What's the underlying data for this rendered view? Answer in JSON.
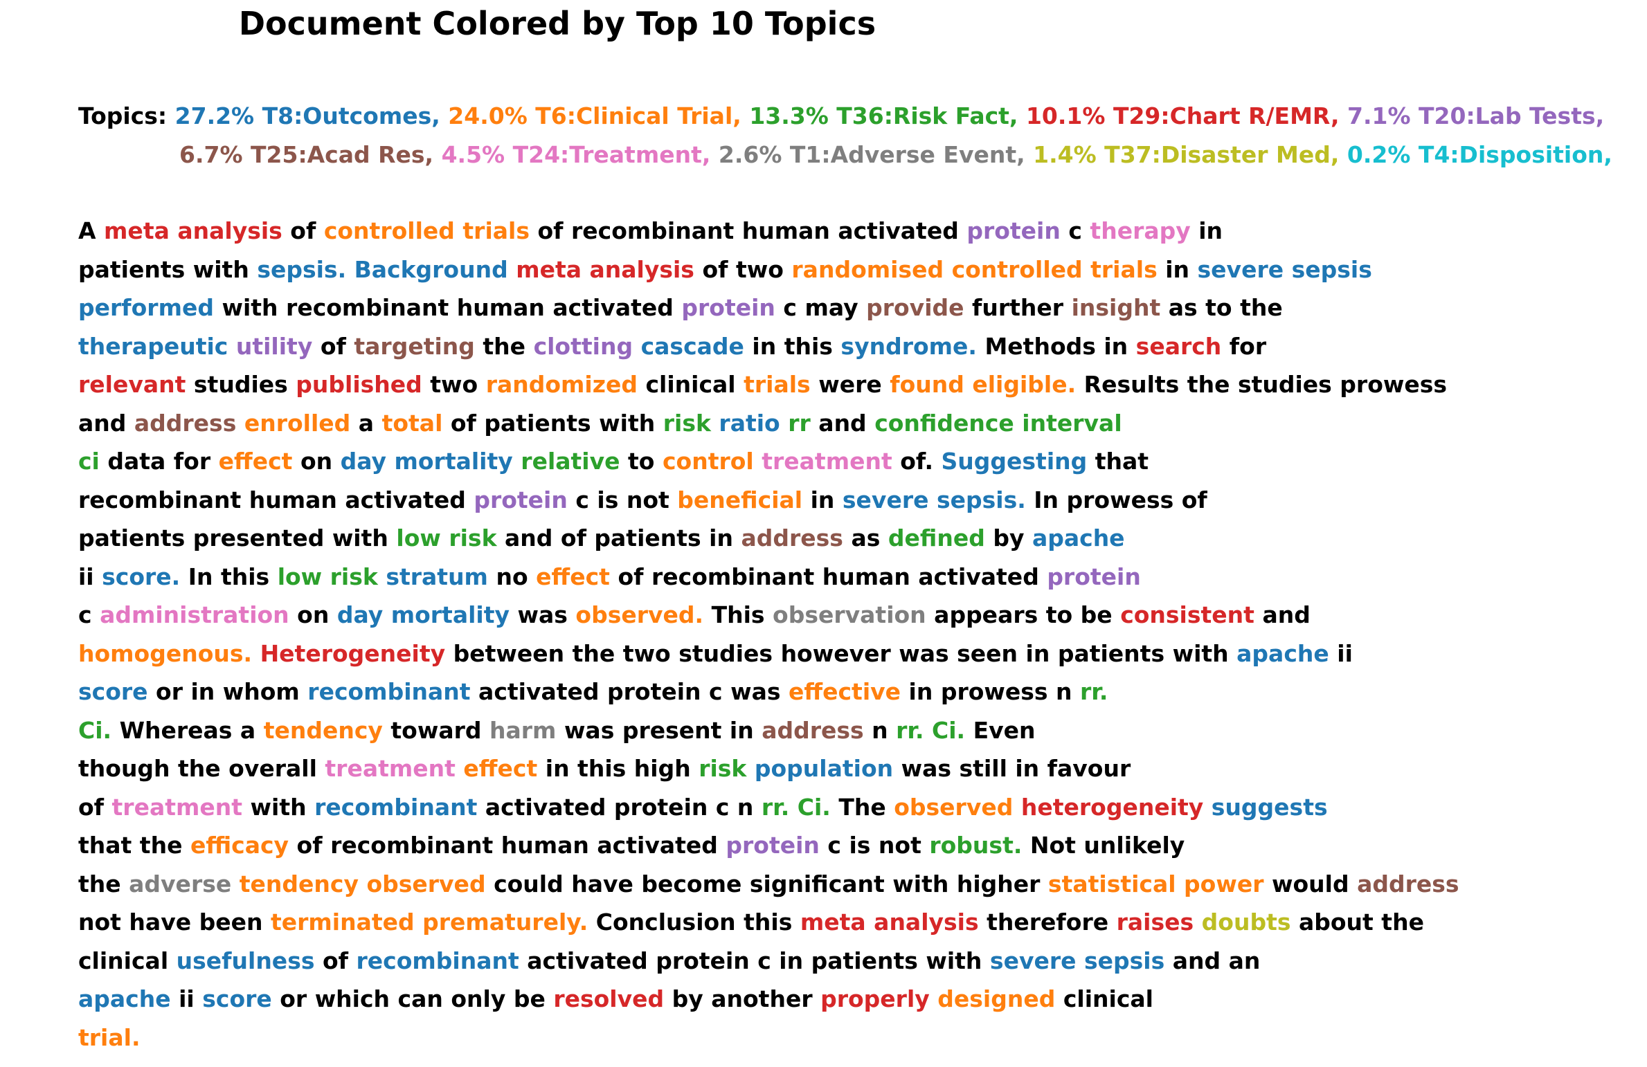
{
  "title": "Document Colored by Top 10 Topics",
  "palette": {
    "black": "#000000",
    "blue": "#1f77b4",
    "orange": "#ff7f0e",
    "green": "#2ca02c",
    "red": "#d62728",
    "purple": "#9467bd",
    "brown": "#8c564b",
    "pink": "#e377c2",
    "gray": "#7f7f7f",
    "olive": "#bcbd22",
    "cyan": "#17becf"
  },
  "topics": {
    "label": "Topics:",
    "rows": [
      [
        {
          "text": "27.2% T8:Outcomes,",
          "color": "blue"
        },
        {
          "text": "24.0% T6:Clinical Trial,",
          "color": "orange"
        },
        {
          "text": "13.3% T36:Risk Fact,",
          "color": "green"
        },
        {
          "text": "10.1% T29:Chart R/EMR,",
          "color": "red"
        },
        {
          "text": "7.1% T20:Lab Tests,",
          "color": "purple"
        }
      ],
      [
        {
          "text": "6.7% T25:Acad Res,",
          "color": "brown"
        },
        {
          "text": "4.5% T24:Treatment,",
          "color": "pink"
        },
        {
          "text": "2.6% T1:Adverse Event,",
          "color": "gray"
        },
        {
          "text": "1.4% T37:Disaster Med,",
          "color": "olive"
        },
        {
          "text": "0.2% T4:Disposition,",
          "color": "cyan"
        }
      ]
    ]
  },
  "document_lines": [
    [
      [
        "A",
        "black"
      ],
      [
        "meta analysis",
        "red"
      ],
      [
        "of",
        "black"
      ],
      [
        "controlled trials",
        "orange"
      ],
      [
        "of recombinant human activated",
        "black"
      ],
      [
        "protein",
        "purple"
      ],
      [
        "c",
        "black"
      ],
      [
        "therapy",
        "pink"
      ],
      [
        "in",
        "black"
      ]
    ],
    [
      [
        "patients with",
        "black"
      ],
      [
        "sepsis. Background",
        "blue"
      ],
      [
        "meta analysis",
        "red"
      ],
      [
        "of two",
        "black"
      ],
      [
        "randomised controlled trials",
        "orange"
      ],
      [
        "in",
        "black"
      ],
      [
        "severe sepsis",
        "blue"
      ]
    ],
    [
      [
        "performed",
        "blue"
      ],
      [
        "with recombinant human activated",
        "black"
      ],
      [
        "protein",
        "purple"
      ],
      [
        "c may",
        "black"
      ],
      [
        "provide",
        "brown"
      ],
      [
        "further",
        "black"
      ],
      [
        "insight",
        "brown"
      ],
      [
        "as to the",
        "black"
      ]
    ],
    [
      [
        "therapeutic",
        "blue"
      ],
      [
        "utility",
        "purple"
      ],
      [
        "of",
        "black"
      ],
      [
        "targeting",
        "brown"
      ],
      [
        "the",
        "black"
      ],
      [
        "clotting",
        "purple"
      ],
      [
        "cascade",
        "blue"
      ],
      [
        "in this",
        "black"
      ],
      [
        "syndrome.",
        "blue"
      ],
      [
        "Methods in",
        "black"
      ],
      [
        "search",
        "red"
      ],
      [
        "for",
        "black"
      ]
    ],
    [
      [
        "relevant",
        "red"
      ],
      [
        "studies",
        "black"
      ],
      [
        "published",
        "red"
      ],
      [
        "two",
        "black"
      ],
      [
        "randomized",
        "orange"
      ],
      [
        "clinical",
        "black"
      ],
      [
        "trials",
        "orange"
      ],
      [
        "were",
        "black"
      ],
      [
        "found eligible.",
        "orange"
      ],
      [
        "Results the studies prowess",
        "black"
      ]
    ],
    [
      [
        "and",
        "black"
      ],
      [
        "address",
        "brown"
      ],
      [
        "enrolled",
        "orange"
      ],
      [
        "a",
        "black"
      ],
      [
        "total",
        "orange"
      ],
      [
        "of patients with",
        "black"
      ],
      [
        "risk",
        "green"
      ],
      [
        "ratio",
        "blue"
      ],
      [
        "rr",
        "green"
      ],
      [
        "and",
        "black"
      ],
      [
        "confidence interval",
        "green"
      ]
    ],
    [
      [
        "ci",
        "green"
      ],
      [
        "data for",
        "black"
      ],
      [
        "effect",
        "orange"
      ],
      [
        "on",
        "black"
      ],
      [
        "day mortality",
        "blue"
      ],
      [
        "relative",
        "green"
      ],
      [
        "to",
        "black"
      ],
      [
        "control",
        "orange"
      ],
      [
        "treatment",
        "pink"
      ],
      [
        "of.",
        "black"
      ],
      [
        "Suggesting",
        "blue"
      ],
      [
        "that",
        "black"
      ]
    ],
    [
      [
        "recombinant human activated",
        "black"
      ],
      [
        "protein",
        "purple"
      ],
      [
        "c is not",
        "black"
      ],
      [
        "beneficial",
        "orange"
      ],
      [
        "in",
        "black"
      ],
      [
        "severe sepsis.",
        "blue"
      ],
      [
        "In prowess of",
        "black"
      ]
    ],
    [
      [
        "patients presented with",
        "black"
      ],
      [
        "low risk",
        "green"
      ],
      [
        "and of patients in",
        "black"
      ],
      [
        "address",
        "brown"
      ],
      [
        "as",
        "black"
      ],
      [
        "defined",
        "green"
      ],
      [
        "by",
        "black"
      ],
      [
        "apache",
        "blue"
      ]
    ],
    [
      [
        "ii",
        "black"
      ],
      [
        "score.",
        "blue"
      ],
      [
        "In this",
        "black"
      ],
      [
        "low risk",
        "green"
      ],
      [
        "stratum",
        "blue"
      ],
      [
        "no",
        "black"
      ],
      [
        "effect",
        "orange"
      ],
      [
        "of recombinant human activated",
        "black"
      ],
      [
        "protein",
        "purple"
      ]
    ],
    [
      [
        "c",
        "black"
      ],
      [
        "administration",
        "pink"
      ],
      [
        "on",
        "black"
      ],
      [
        "day mortality",
        "blue"
      ],
      [
        "was",
        "black"
      ],
      [
        "observed.",
        "orange"
      ],
      [
        "This",
        "black"
      ],
      [
        "observation",
        "gray"
      ],
      [
        "appears to be",
        "black"
      ],
      [
        "consistent",
        "red"
      ],
      [
        "and",
        "black"
      ]
    ],
    [
      [
        "homogenous.",
        "orange"
      ],
      [
        "Heterogeneity",
        "red"
      ],
      [
        "between the two studies however was seen in patients with",
        "black"
      ],
      [
        "apache",
        "blue"
      ],
      [
        "ii",
        "black"
      ]
    ],
    [
      [
        "score",
        "blue"
      ],
      [
        "or in whom",
        "black"
      ],
      [
        "recombinant",
        "blue"
      ],
      [
        "activated protein c was",
        "black"
      ],
      [
        "effective",
        "orange"
      ],
      [
        "in prowess n",
        "black"
      ],
      [
        "rr.",
        "green"
      ]
    ],
    [
      [
        "Ci.",
        "green"
      ],
      [
        "Whereas a",
        "black"
      ],
      [
        "tendency",
        "orange"
      ],
      [
        "toward",
        "black"
      ],
      [
        "harm",
        "gray"
      ],
      [
        "was present in",
        "black"
      ],
      [
        "address",
        "brown"
      ],
      [
        "n",
        "black"
      ],
      [
        "rr. Ci.",
        "green"
      ],
      [
        "Even",
        "black"
      ]
    ],
    [
      [
        "though the overall",
        "black"
      ],
      [
        "treatment",
        "pink"
      ],
      [
        "effect",
        "orange"
      ],
      [
        "in this high",
        "black"
      ],
      [
        "risk",
        "green"
      ],
      [
        "population",
        "blue"
      ],
      [
        "was still in favour",
        "black"
      ]
    ],
    [
      [
        "of",
        "black"
      ],
      [
        "treatment",
        "pink"
      ],
      [
        "with",
        "black"
      ],
      [
        "recombinant",
        "blue"
      ],
      [
        "activated protein c n",
        "black"
      ],
      [
        "rr. Ci.",
        "green"
      ],
      [
        "The",
        "black"
      ],
      [
        "observed",
        "orange"
      ],
      [
        "heterogeneity",
        "red"
      ],
      [
        "suggests",
        "blue"
      ]
    ],
    [
      [
        "that the",
        "black"
      ],
      [
        "efficacy",
        "orange"
      ],
      [
        "of recombinant human activated",
        "black"
      ],
      [
        "protein",
        "purple"
      ],
      [
        "c is not",
        "black"
      ],
      [
        "robust.",
        "green"
      ],
      [
        "Not unlikely",
        "black"
      ]
    ],
    [
      [
        "the",
        "black"
      ],
      [
        "adverse",
        "gray"
      ],
      [
        "tendency observed",
        "orange"
      ],
      [
        "could have become significant with higher",
        "black"
      ],
      [
        "statistical power",
        "orange"
      ],
      [
        "would",
        "black"
      ],
      [
        "address",
        "brown"
      ]
    ],
    [
      [
        "not have been",
        "black"
      ],
      [
        "terminated prematurely.",
        "orange"
      ],
      [
        "Conclusion this",
        "black"
      ],
      [
        "meta analysis",
        "red"
      ],
      [
        "therefore",
        "black"
      ],
      [
        "raises",
        "red"
      ],
      [
        "doubts",
        "olive"
      ],
      [
        "about the",
        "black"
      ]
    ],
    [
      [
        "clinical",
        "black"
      ],
      [
        "usefulness",
        "blue"
      ],
      [
        "of",
        "black"
      ],
      [
        "recombinant",
        "blue"
      ],
      [
        "activated protein c in patients with",
        "black"
      ],
      [
        "severe sepsis",
        "blue"
      ],
      [
        "and an",
        "black"
      ]
    ],
    [
      [
        "apache",
        "blue"
      ],
      [
        "ii",
        "black"
      ],
      [
        "score",
        "blue"
      ],
      [
        "or which can only be",
        "black"
      ],
      [
        "resolved",
        "red"
      ],
      [
        "by another",
        "black"
      ],
      [
        "properly",
        "red"
      ],
      [
        "designed",
        "orange"
      ],
      [
        "clinical",
        "black"
      ]
    ],
    [
      [
        "trial.",
        "orange"
      ]
    ]
  ]
}
